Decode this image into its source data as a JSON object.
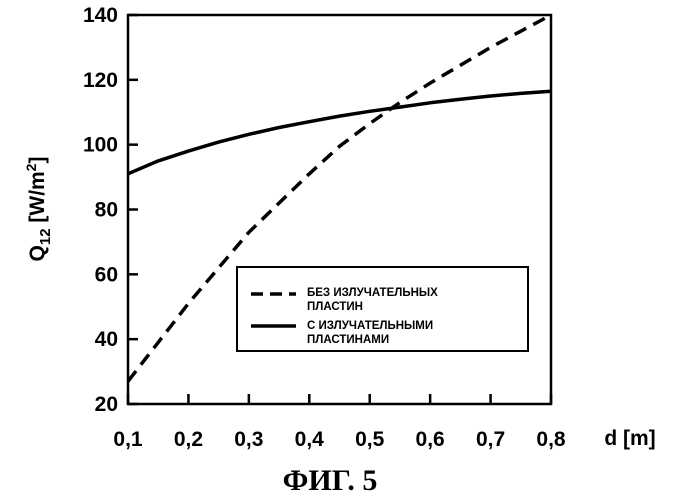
{
  "chart_data": {
    "type": "line",
    "xlabel": "d [m]",
    "ylabel": {
      "base": "Q",
      "sub": "12",
      "unit_open": " [W/m",
      "unit_sup": "2",
      "unit_close": "]"
    },
    "xlim": [
      0.1,
      0.8
    ],
    "ylim": [
      20,
      140
    ],
    "x_ticks": [
      0.1,
      0.2,
      0.3,
      0.4,
      0.5,
      0.6,
      0.7,
      0.8
    ],
    "x_tick_labels": [
      "0,1",
      "0,2",
      "0,3",
      "0,4",
      "0,5",
      "0,6",
      "0,7",
      "0,8"
    ],
    "y_ticks": [
      20,
      40,
      60,
      80,
      100,
      120,
      140
    ],
    "y_tick_labels": [
      "20",
      "40",
      "60",
      "80",
      "100",
      "120",
      "140"
    ],
    "grid": false,
    "legend_position": "center-right",
    "caption": "ФИГ. 5",
    "series": [
      {
        "name_lines": [
          "БЕЗ ИЗЛУЧАТЕЛЬНЫХ",
          "ПЛАСТИН"
        ],
        "style": "dashed",
        "x": [
          0.1,
          0.15,
          0.2,
          0.25,
          0.3,
          0.35,
          0.4,
          0.45,
          0.5,
          0.55,
          0.6,
          0.65,
          0.7,
          0.75,
          0.8
        ],
        "y": [
          27,
          39,
          51,
          62,
          73,
          82,
          91,
          99.5,
          106.5,
          113,
          119,
          124.5,
          130,
          135,
          140
        ]
      },
      {
        "name_lines": [
          "С ИЗЛУЧАТЕЛЬНЫМИ",
          "ПЛАСТИНАМИ"
        ],
        "style": "solid",
        "x": [
          0.1,
          0.15,
          0.2,
          0.25,
          0.3,
          0.35,
          0.4,
          0.45,
          0.5,
          0.55,
          0.6,
          0.65,
          0.7,
          0.75,
          0.8
        ],
        "y": [
          91,
          95,
          98,
          100.8,
          103.2,
          105.3,
          107.1,
          108.8,
          110.3,
          111.6,
          112.9,
          114,
          115,
          115.8,
          116.5
        ]
      }
    ]
  }
}
